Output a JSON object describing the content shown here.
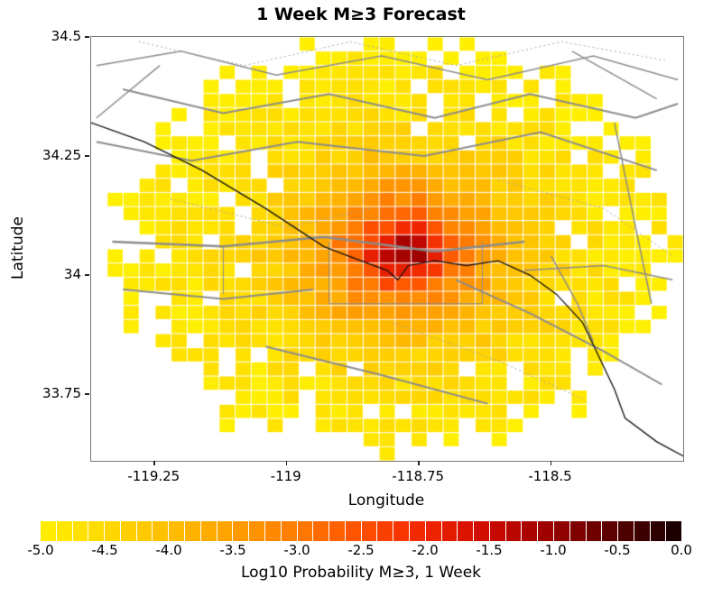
{
  "chart_data": {
    "type": "heatmap",
    "title": "1 Week M≥3 Forecast",
    "xlabel": "Longitude",
    "ylabel": "Latitude",
    "x_range": [
      -119.37,
      -118.25
    ],
    "y_range": [
      33.61,
      34.5
    ],
    "x_ticks": {
      "values": [
        -119.25,
        -119,
        -118.75,
        -118.5
      ],
      "labels": [
        "-119.25",
        "-119",
        "-118.75",
        "-118.5"
      ]
    },
    "y_ticks": {
      "values": [
        34.5,
        34.25,
        34,
        33.75
      ],
      "labels": [
        "34.5",
        "34.25",
        "34",
        "33.75"
      ]
    },
    "peak": {
      "lon": -118.77,
      "lat": 34.05,
      "log10_prob": -0.5
    },
    "cells": {
      "ncols": 37,
      "nrows": 30
    },
    "mask_ellipse": {
      "center_lon": -118.79,
      "center_lat": 34.07,
      "rx": 0.52,
      "ry": 0.43
    },
    "grid": {
      "note": "estimated Log10 probability field, rows south-to-north",
      "lon_centers": [
        -119.4,
        -119.31,
        -119.22,
        -119.13,
        -119.04,
        -118.95,
        -118.86,
        -118.77,
        -118.68,
        -118.59,
        -118.5,
        -118.41,
        -118.32
      ],
      "lat_centers": [
        33.6,
        33.69,
        33.78,
        33.87,
        33.96,
        34.05,
        34.14,
        34.23,
        34.32,
        34.41,
        34.5
      ],
      "log10_prob": [
        [
          null,
          null,
          null,
          null,
          null,
          -5.0,
          -5.0,
          -4.9,
          -5.0,
          null,
          null,
          null,
          null
        ],
        [
          null,
          null,
          null,
          -5.0,
          -4.9,
          -4.8,
          -4.8,
          -4.8,
          -4.8,
          -4.9,
          -4.9,
          null,
          null
        ],
        [
          null,
          null,
          -5.0,
          -4.9,
          -4.8,
          -4.7,
          -4.6,
          -4.6,
          -4.6,
          -4.7,
          -4.8,
          -4.9,
          null
        ],
        [
          null,
          -5.0,
          -4.9,
          -4.8,
          -4.6,
          -4.4,
          -4.1,
          -4.0,
          -4.2,
          -4.4,
          -4.6,
          -4.8,
          -4.9
        ],
        [
          null,
          -5.0,
          -4.8,
          -4.7,
          -4.4,
          -3.9,
          -3.2,
          -2.9,
          -3.4,
          -4.1,
          -4.5,
          -4.7,
          -4.9
        ],
        [
          null,
          -4.9,
          -4.8,
          -4.6,
          -4.3,
          -3.7,
          -2.4,
          -0.5,
          -2.7,
          -3.8,
          -4.4,
          -4.7,
          -4.8
        ],
        [
          null,
          -5.0,
          -4.8,
          -4.7,
          -4.4,
          -3.9,
          -3.2,
          -2.9,
          -3.4,
          -4.1,
          -4.5,
          -4.7,
          -4.9
        ],
        [
          null,
          -5.0,
          -4.9,
          -4.8,
          -4.6,
          -4.4,
          -4.1,
          -4.0,
          -4.2,
          -4.4,
          -4.6,
          -4.8,
          -4.9
        ],
        [
          null,
          null,
          -5.0,
          -4.9,
          -4.8,
          -4.7,
          -4.6,
          -4.6,
          -4.6,
          -4.7,
          -4.8,
          -4.9,
          null
        ],
        [
          null,
          null,
          null,
          -5.0,
          -4.9,
          -4.8,
          -4.8,
          -4.8,
          -4.8,
          -4.9,
          -4.9,
          null,
          null
        ],
        [
          null,
          null,
          null,
          null,
          null,
          -5.0,
          -5.0,
          -4.9,
          -5.0,
          null,
          null,
          null,
          null
        ]
      ]
    },
    "colorbar": {
      "label": "Log10 Probability M≥3, 1 Week",
      "min": -5,
      "max": 0,
      "segments": 40,
      "tick_labels": [
        "-5.0",
        "-4.5",
        "-4.0",
        "-3.5",
        "-3.0",
        "-2.5",
        "-2.0",
        "-1.5",
        "-1.0",
        "-0.5",
        "0.0"
      ],
      "stops": [
        {
          "v": -5.0,
          "c": "#ffef00"
        },
        {
          "v": -4.5,
          "c": "#ffd900"
        },
        {
          "v": -4.0,
          "c": "#ffbf00"
        },
        {
          "v": -3.5,
          "c": "#ffa000"
        },
        {
          "v": -3.0,
          "c": "#ff7b00"
        },
        {
          "v": -2.5,
          "c": "#ff5000"
        },
        {
          "v": -2.0,
          "c": "#f02500"
        },
        {
          "v": -1.5,
          "c": "#cc0a00"
        },
        {
          "v": -1.0,
          "c": "#970000"
        },
        {
          "v": -0.5,
          "c": "#550000"
        },
        {
          "v": 0.0,
          "c": "#140000"
        }
      ]
    },
    "overlays": {
      "fault_color": "#8c8c8c",
      "dotted_color": "#a6a6a6",
      "coast_color": "#111111",
      "fault_lines": [
        {
          "width": 2,
          "points": [
            [
              -119.36,
              34.28
            ],
            [
              -119.18,
              34.24
            ],
            [
              -118.98,
              34.28
            ],
            [
              -118.74,
              34.25
            ],
            [
              -118.52,
              34.3
            ],
            [
              -118.3,
              34.22
            ]
          ]
        },
        {
          "width": 2,
          "points": [
            [
              -119.31,
              34.39
            ],
            [
              -119.12,
              34.34
            ],
            [
              -118.92,
              34.38
            ],
            [
              -118.72,
              34.33
            ],
            [
              -118.54,
              34.38
            ],
            [
              -118.34,
              34.33
            ],
            [
              -118.26,
              34.36
            ]
          ]
        },
        {
          "width": 1.5,
          "points": [
            [
              -119.36,
              34.44
            ],
            [
              -119.2,
              34.47
            ],
            [
              -119.02,
              34.42
            ],
            [
              -118.82,
              34.46
            ],
            [
              -118.62,
              34.41
            ],
            [
              -118.42,
              34.46
            ],
            [
              -118.26,
              34.41
            ]
          ]
        },
        {
          "width": 2.5,
          "points": [
            [
              -119.33,
              34.07
            ],
            [
              -119.12,
              34.06
            ],
            [
              -118.93,
              34.08
            ],
            [
              -118.72,
              34.05
            ],
            [
              -118.55,
              34.07
            ]
          ]
        },
        {
          "width": 2,
          "points": [
            [
              -118.68,
              33.99
            ],
            [
              -118.54,
              33.92
            ],
            [
              -118.4,
              33.84
            ],
            [
              -118.29,
              33.77
            ]
          ]
        },
        {
          "width": 2,
          "points": [
            [
              -119.04,
              33.85
            ],
            [
              -118.82,
              33.79
            ],
            [
              -118.62,
              33.73
            ]
          ]
        },
        {
          "width": 1.5,
          "points": [
            [
              -118.38,
              34.32
            ],
            [
              -118.34,
              34.1
            ],
            [
              -118.31,
              33.94
            ]
          ]
        },
        {
          "width": 1.5,
          "points": [
            [
              -118.5,
              34.04
            ],
            [
              -118.45,
              33.94
            ],
            [
              -118.42,
              33.86
            ]
          ]
        },
        {
          "width": 2,
          "points": [
            [
              -119.31,
              33.97
            ],
            [
              -119.12,
              33.95
            ],
            [
              -118.95,
              33.97
            ]
          ]
        },
        {
          "width": 1,
          "points": [
            [
              -118.92,
              34.07
            ],
            [
              -118.92,
              33.94
            ]
          ]
        },
        {
          "width": 1,
          "points": [
            [
              -118.63,
              34.07
            ],
            [
              -118.63,
              33.94
            ]
          ]
        },
        {
          "width": 1,
          "points": [
            [
              -118.92,
              33.94
            ],
            [
              -118.63,
              33.94
            ]
          ]
        },
        {
          "width": 1,
          "points": [
            [
              -119.12,
              34.06
            ],
            [
              -119.12,
              33.96
            ]
          ]
        },
        {
          "width": 1.5,
          "points": [
            [
              -118.46,
              34.47
            ],
            [
              -118.3,
              34.37
            ]
          ]
        },
        {
          "width": 1.5,
          "points": [
            [
              -119.36,
              34.33
            ],
            [
              -119.24,
              34.44
            ]
          ]
        },
        {
          "width": 1.5,
          "points": [
            [
              -118.55,
              34.01
            ],
            [
              -118.4,
              34.02
            ],
            [
              -118.27,
              33.99
            ]
          ]
        }
      ],
      "dotted_lines": [
        {
          "points": [
            [
              -119.28,
              34.49
            ],
            [
              -119.08,
              34.44
            ],
            [
              -118.88,
              34.49
            ],
            [
              -118.68,
              34.44
            ],
            [
              -118.48,
              34.49
            ],
            [
              -118.28,
              34.45
            ]
          ]
        },
        {
          "points": [
            [
              -118.6,
              34.2
            ],
            [
              -118.4,
              34.14
            ],
            [
              -118.27,
              34.04
            ]
          ]
        },
        {
          "points": [
            [
              -119.22,
              34.16
            ],
            [
              -119.0,
              34.1
            ],
            [
              -118.84,
              34.14
            ]
          ]
        },
        {
          "points": [
            [
              -118.8,
              33.9
            ],
            [
              -118.6,
              33.82
            ],
            [
              -118.44,
              33.74
            ]
          ]
        }
      ],
      "coastline": {
        "width": 1.3,
        "points": [
          [
            -119.37,
            34.32
          ],
          [
            -119.27,
            34.28
          ],
          [
            -119.16,
            34.22
          ],
          [
            -119.04,
            34.14
          ],
          [
            -118.93,
            34.06
          ],
          [
            -118.86,
            34.03
          ],
          [
            -118.81,
            34.01
          ],
          [
            -118.79,
            33.99
          ],
          [
            -118.77,
            34.02
          ],
          [
            -118.72,
            34.03
          ],
          [
            -118.66,
            34.02
          ],
          [
            -118.6,
            34.03
          ],
          [
            -118.54,
            34.0
          ],
          [
            -118.49,
            33.96
          ],
          [
            -118.44,
            33.9
          ],
          [
            -118.41,
            33.83
          ],
          [
            -118.38,
            33.76
          ],
          [
            -118.36,
            33.7
          ],
          [
            -118.3,
            33.65
          ],
          [
            -118.25,
            33.62
          ]
        ]
      }
    }
  }
}
